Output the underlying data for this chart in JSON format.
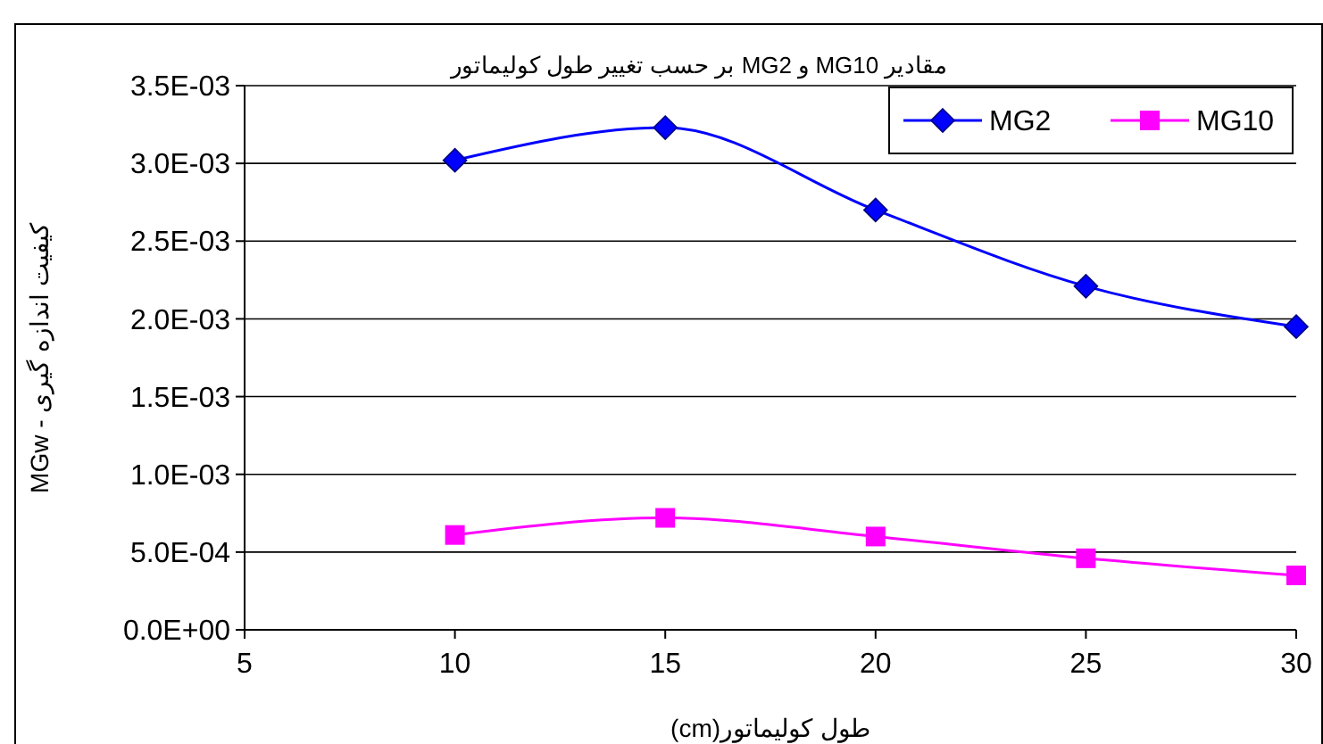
{
  "chart_data": {
    "type": "line",
    "title": "مقادیر MG10 و MG2 بر حسب تغییر طول کولیماتور",
    "xlabel": "طول کولیماتور(cm)",
    "ylabel": "کیفیت اندازه گیری - MGw",
    "x": [
      10,
      15,
      20,
      25,
      30
    ],
    "series": [
      {
        "name": "MG2",
        "color": "#0000ff",
        "marker": "diamond",
        "values": [
          0.00302,
          0.00323,
          0.0027,
          0.00221,
          0.00195
        ]
      },
      {
        "name": "MG10",
        "color": "#ff00ff",
        "marker": "square",
        "values": [
          0.00061,
          0.00072,
          0.0006,
          0.00046,
          0.00035
        ]
      }
    ],
    "xlim": [
      5,
      30
    ],
    "xticks": [
      5,
      10,
      15,
      20,
      25,
      30
    ],
    "ylim": [
      0,
      0.0035
    ],
    "yticks": [
      {
        "value": 0,
        "label": "0.0E+00"
      },
      {
        "value": 0.0005,
        "label": "5.0E-04"
      },
      {
        "value": 0.001,
        "label": "1.0E-03"
      },
      {
        "value": 0.0015,
        "label": "1.5E-03"
      },
      {
        "value": 0.002,
        "label": "2.0E-03"
      },
      {
        "value": 0.0025,
        "label": "2.5E-03"
      },
      {
        "value": 0.003,
        "label": "3.0E-03"
      },
      {
        "value": 0.0035,
        "label": "3.5E-03"
      }
    ],
    "grid": "y",
    "legend": "top right"
  }
}
